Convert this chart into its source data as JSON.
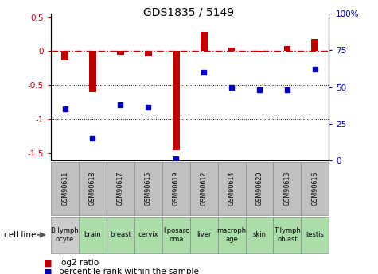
{
  "title": "GDS1835 / 5149",
  "samples": [
    "GSM90611",
    "GSM90618",
    "GSM90617",
    "GSM90615",
    "GSM90619",
    "GSM90612",
    "GSM90614",
    "GSM90620",
    "GSM90613",
    "GSM90616"
  ],
  "cell_lines": [
    "B lymph\nocyte",
    "brain",
    "breast",
    "cervix",
    "liposarc\noma",
    "liver",
    "macroph\nage",
    "skin",
    "T lymph\noblast",
    "testis"
  ],
  "cell_colors": [
    "#cccccc",
    "#aaddaa",
    "#aaddaa",
    "#aaddaa",
    "#aaddaa",
    "#aaddaa",
    "#aaddaa",
    "#aaddaa",
    "#aaddaa",
    "#aaddaa"
  ],
  "gsm_color": "#c0c0c0",
  "log2_ratio": [
    -0.13,
    -0.6,
    -0.05,
    -0.08,
    -1.45,
    0.28,
    0.05,
    -0.02,
    0.07,
    0.18
  ],
  "percentile_rank": [
    35,
    15,
    38,
    36,
    1,
    60,
    50,
    48,
    48,
    62
  ],
  "ylim_left": [
    -1.6,
    0.55
  ],
  "ylim_right": [
    0,
    100
  ],
  "bar_color": "#bb0000",
  "dot_color": "#0000bb",
  "zero_line_color": "#cc0000",
  "grid_color": "#000000",
  "bg_color": "#ffffff",
  "left_yticks": [
    0.5,
    0.0,
    -0.5,
    -1.0,
    -1.5
  ],
  "left_yticklabels": [
    "0.5",
    "0",
    "-0.5",
    "-1",
    "-1.5"
  ],
  "right_yticks": [
    0,
    25,
    50,
    75,
    100
  ],
  "right_yticklabels": [
    "0",
    "25",
    "50",
    "75",
    "100%"
  ]
}
